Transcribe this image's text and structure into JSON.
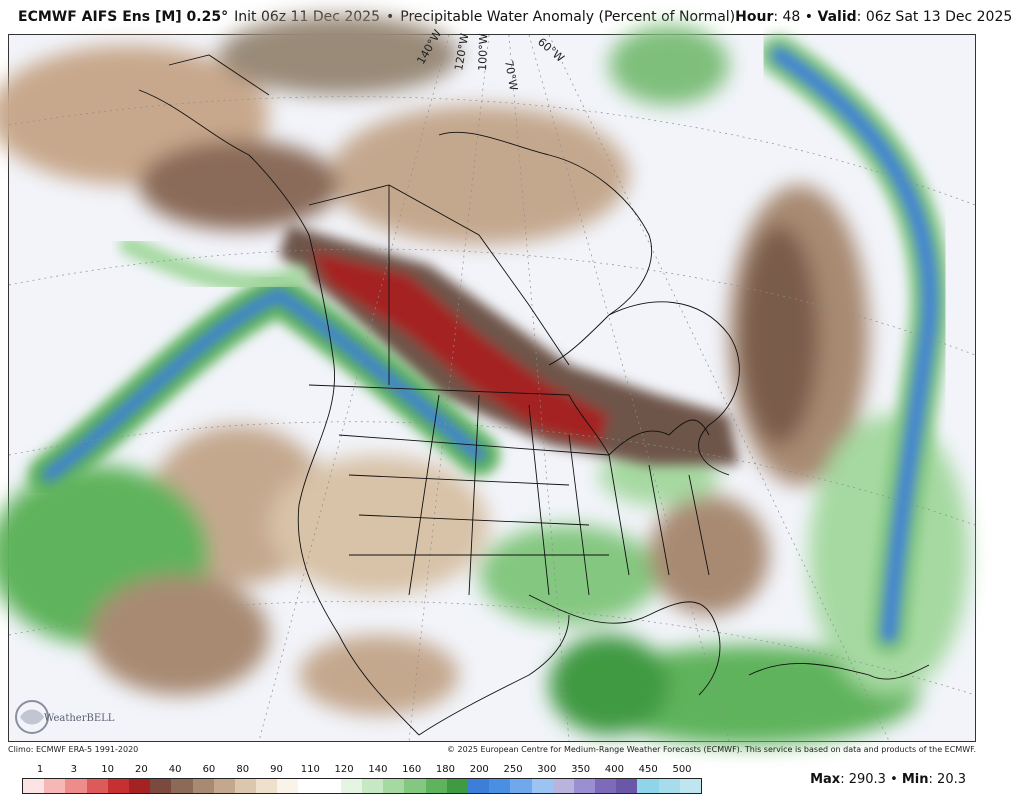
{
  "header": {
    "model": "ECMWF AIFS Ens [M] 0.25°",
    "init": "Init 06z 11 Dec 2025",
    "separator": "•",
    "product": "Precipitable Water Anomaly (Percent of Normal)",
    "hour_label": "Hour",
    "hour_value": ": 48",
    "valid_label": "Valid",
    "valid_value": ": 06z Sat 13 Dec 2025"
  },
  "map": {
    "longitude_labels": [
      "140°W",
      "120°W",
      "100°W",
      "70°W",
      "60°W"
    ],
    "logo_text": "WeatherBELL"
  },
  "credits": {
    "climo": "Climo: ECMWF ERA-5 1991-2020",
    "copyright": "© 2025 European Centre for Medium-Range Weather Forecasts (ECMWF). This service is based on data and products of the ECMWF."
  },
  "legend": {
    "labels": [
      "1",
      "3",
      "10",
      "20",
      "40",
      "60",
      "80",
      "90",
      "110",
      "120",
      "140",
      "160",
      "180",
      "200",
      "250",
      "300",
      "350",
      "400",
      "450",
      "500"
    ],
    "colors": [
      "#fde4e4",
      "#f7b7b7",
      "#ee8c8c",
      "#dd5a5a",
      "#c73030",
      "#a52222",
      "#7a4a40",
      "#8c6a58",
      "#a88a72",
      "#c4a88e",
      "#dcc6ae",
      "#efe0cc",
      "#faf3ea",
      "#ffffff",
      "#ffffff",
      "#e6f4e3",
      "#c6e8c2",
      "#a6d9a1",
      "#84c780",
      "#5fb35c",
      "#3f9a42",
      "#3d7fd8",
      "#4a90e2",
      "#6fa8ec",
      "#9cc4f2",
      "#b8b4de",
      "#9a8fd0",
      "#7d6ab9",
      "#6a57a8",
      "#8fd4e8",
      "#a6dcec",
      "#bfe6f0"
    ]
  },
  "stats": {
    "max_label": "Max",
    "max_value": ": 290.3",
    "sep": "•",
    "min_label": "Min",
    "min_value": ": 20.3"
  }
}
